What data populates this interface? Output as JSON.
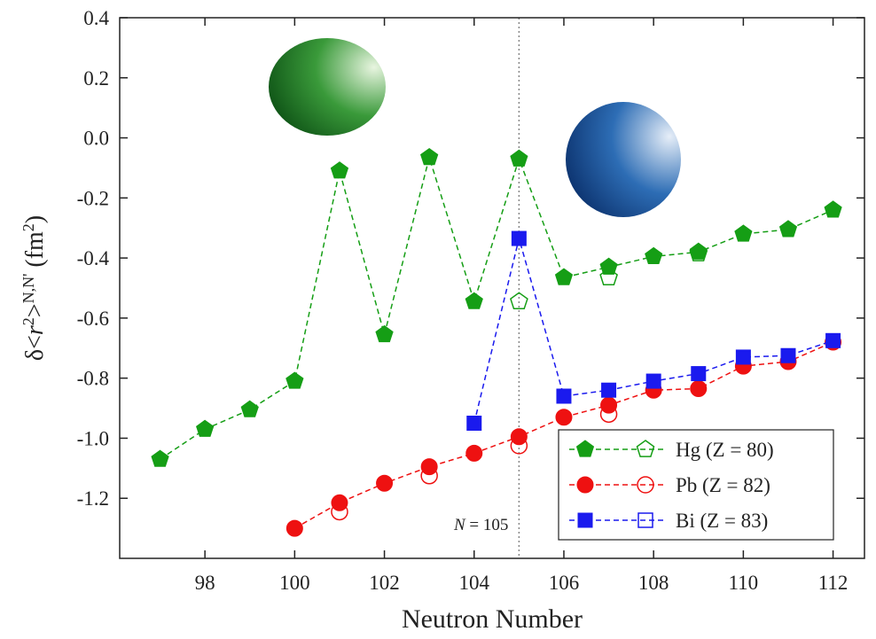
{
  "chart_data": {
    "type": "line",
    "x_label": "Neutron Number",
    "y_label": [
      "δ<",
      "r",
      "2",
      ">",
      "N,N'",
      " (fm",
      "2",
      ")"
    ],
    "annotation": [
      "N",
      " = 105"
    ],
    "vline": 105,
    "x": [
      97,
      98,
      99,
      100,
      101,
      102,
      103,
      104,
      105,
      106,
      107,
      108,
      109,
      110,
      111,
      112
    ],
    "series": [
      {
        "name": "Hg (Z = 80)",
        "color": "#159e15",
        "marker": "pentagon",
        "values": [
          -1.07,
          -0.97,
          -0.905,
          -0.81,
          -0.11,
          -0.655,
          -0.065,
          -0.545,
          -0.07,
          -0.465,
          -0.43,
          -0.395,
          -0.38,
          -0.32,
          -0.305,
          -0.24
        ],
        "open_values": [
          null,
          null,
          null,
          null,
          null,
          null,
          null,
          null,
          -0.545,
          null,
          -0.465,
          null,
          -0.385,
          null,
          null,
          null
        ]
      },
      {
        "name": "Pb (Z = 82)",
        "color": "#ee1111",
        "marker": "circle",
        "values": [
          null,
          null,
          null,
          -1.3,
          -1.215,
          -1.15,
          -1.095,
          -1.05,
          -0.995,
          -0.93,
          -0.89,
          -0.84,
          -0.835,
          -0.76,
          -0.745,
          -0.68
        ],
        "open_values": [
          null,
          null,
          null,
          null,
          -1.245,
          null,
          -1.125,
          null,
          -1.025,
          null,
          -0.92,
          null,
          null,
          null,
          null,
          null
        ]
      },
      {
        "name": "Bi (Z = 83)",
        "color": "#1a1aee",
        "marker": "square",
        "values": [
          null,
          null,
          null,
          null,
          null,
          null,
          null,
          -0.95,
          -0.335,
          -0.86,
          -0.84,
          -0.81,
          -0.785,
          -0.73,
          -0.725,
          -0.675
        ]
      }
    ],
    "xlim": [
      96.1,
      112.7
    ],
    "ylim": [
      -1.4,
      0.4
    ],
    "xticks": [
      98,
      100,
      102,
      104,
      106,
      108,
      110,
      112
    ],
    "yticks": [
      0.4,
      0.2,
      {
        "value": 0,
        "label": "0.0"
      },
      -0.2,
      -0.4,
      -0.6,
      -0.8,
      {
        "value": -1,
        "label": "-1.0"
      },
      -1.2
    ],
    "legend": "lower right"
  }
}
